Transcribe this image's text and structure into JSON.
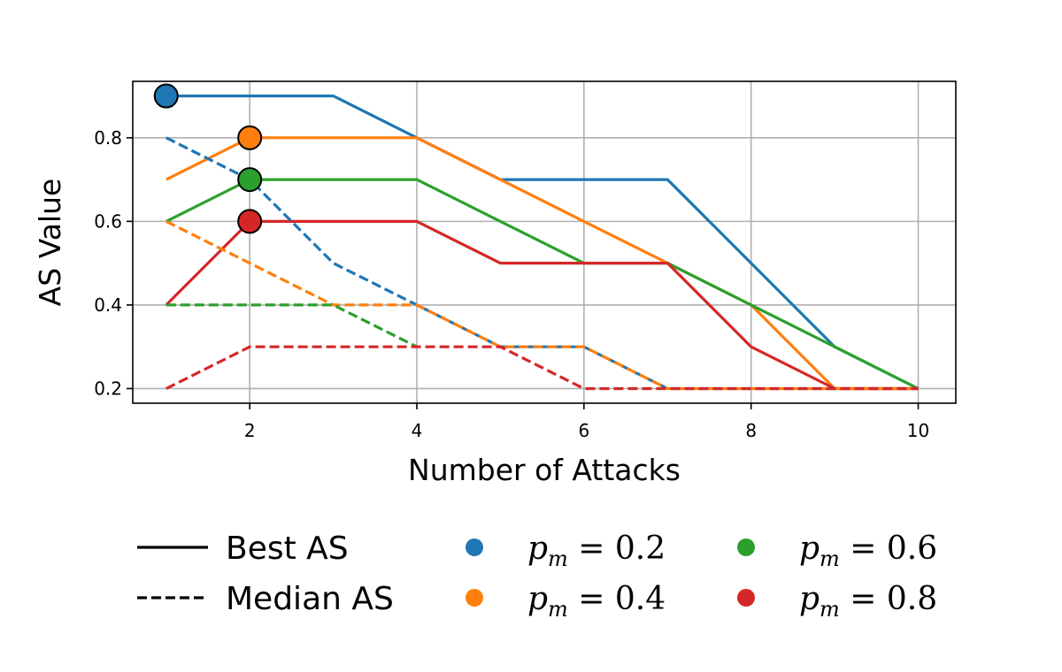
{
  "chart_data": {
    "type": "line",
    "title": "",
    "xlabel": "Number of Attacks",
    "ylabel": "AS Value",
    "xlim": [
      0.6,
      10.45
    ],
    "ylim": [
      0.165,
      0.935
    ],
    "x_ticks": [
      2,
      4,
      6,
      8,
      10
    ],
    "x_tick_labels": [
      "2",
      "4",
      "6",
      "8",
      "10"
    ],
    "y_ticks": [
      0.2,
      0.4,
      0.6,
      0.8
    ],
    "y_tick_labels": [
      "0.2",
      "0.4",
      "0.6",
      "0.8"
    ],
    "grid": true,
    "legend_placement": "below",
    "x": [
      1,
      2,
      3,
      4,
      5,
      6,
      7,
      8,
      9,
      10
    ],
    "series": [
      {
        "group": "pm_0.2",
        "kind": "best",
        "color": "#1f77b4",
        "values": [
          0.9,
          0.9,
          0.9,
          0.8,
          0.7,
          0.7,
          0.7,
          0.5,
          0.3,
          0.2
        ]
      },
      {
        "group": "pm_0.4",
        "kind": "best",
        "color": "#ff7f0e",
        "values": [
          0.7,
          0.8,
          0.8,
          0.8,
          0.7,
          0.6,
          0.5,
          0.4,
          0.2,
          0.2
        ]
      },
      {
        "group": "pm_0.6",
        "kind": "best",
        "color": "#2ca02c",
        "values": [
          0.6,
          0.7,
          0.7,
          0.7,
          0.6,
          0.5,
          0.5,
          0.4,
          0.3,
          0.2
        ]
      },
      {
        "group": "pm_0.8",
        "kind": "best",
        "color": "#d62728",
        "values": [
          0.4,
          0.6,
          0.6,
          0.6,
          0.5,
          0.5,
          0.5,
          0.3,
          0.2,
          0.2
        ]
      },
      {
        "group": "pm_0.2",
        "kind": "median",
        "color": "#1f77b4",
        "values": [
          0.8,
          0.7,
          0.5,
          0.4,
          0.3,
          0.3,
          0.2,
          0.2,
          0.2,
          0.2
        ]
      },
      {
        "group": "pm_0.4",
        "kind": "median",
        "color": "#ff7f0e",
        "values": [
          0.6,
          0.5,
          0.4,
          0.4,
          0.3,
          0.3,
          0.2,
          0.2,
          0.2,
          0.2
        ]
      },
      {
        "group": "pm_0.6",
        "kind": "median",
        "color": "#2ca02c",
        "x": [
          1,
          2,
          3,
          4
        ],
        "values": [
          0.4,
          0.4,
          0.4,
          0.3
        ]
      },
      {
        "group": "pm_0.8",
        "kind": "median",
        "color": "#d62728",
        "values": [
          0.2,
          0.3,
          0.3,
          0.3,
          0.3,
          0.2,
          0.2,
          0.2,
          0.2,
          0.2
        ]
      }
    ],
    "markers": [
      {
        "group": "pm_0.2",
        "x": 1,
        "y": 0.9,
        "color": "#1f77b4"
      },
      {
        "group": "pm_0.4",
        "x": 2,
        "y": 0.8,
        "color": "#ff7f0e"
      },
      {
        "group": "pm_0.6",
        "x": 2,
        "y": 0.7,
        "color": "#2ca02c"
      },
      {
        "group": "pm_0.8",
        "x": 2,
        "y": 0.6,
        "color": "#d62728"
      }
    ],
    "legend": {
      "style_entries": [
        {
          "label": "Best AS",
          "linestyle": "solid"
        },
        {
          "label": "Median AS",
          "linestyle": "dashed"
        }
      ],
      "color_entries": [
        {
          "var": "p",
          "sub": "m",
          "eq": " = 0.2",
          "color": "#1f77b4"
        },
        {
          "var": "p",
          "sub": "m",
          "eq": " = 0.4",
          "color": "#ff7f0e"
        },
        {
          "var": "p",
          "sub": "m",
          "eq": " = 0.6",
          "color": "#2ca02c"
        },
        {
          "var": "p",
          "sub": "m",
          "eq": " = 0.8",
          "color": "#d62728"
        }
      ]
    }
  }
}
